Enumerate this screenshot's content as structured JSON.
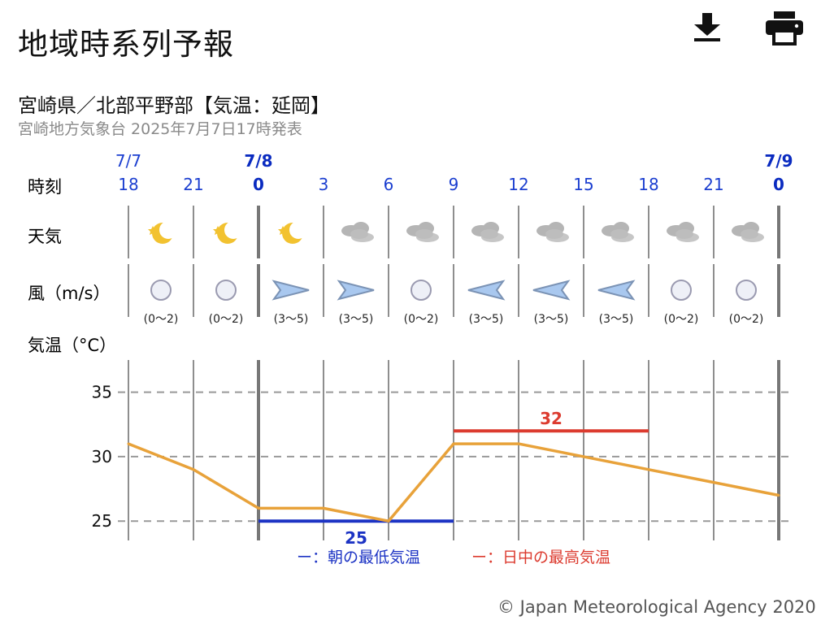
{
  "header": {
    "title": "地域時系列予報",
    "download_icon": "download-icon",
    "print_icon": "print-icon"
  },
  "forecast": {
    "heading": "宮崎県／北部平野部【気温：延岡】",
    "issuer": "宮崎地方気象台 2025年7月7日17時発表"
  },
  "rows": {
    "time_label": "時刻",
    "weather_label": "天気",
    "wind_label": "風（m/s）",
    "temp_label": "気温（°C）"
  },
  "dates": [
    {
      "slot": 0,
      "label": "7/7",
      "bold": false
    },
    {
      "slot": 2,
      "label": "7/8",
      "bold": true
    },
    {
      "slot": 10,
      "label": "7/9",
      "bold": true
    }
  ],
  "times": [
    "18",
    "21",
    "0",
    "3",
    "6",
    "9",
    "12",
    "15",
    "18",
    "21",
    "0"
  ],
  "weather": [
    "moon",
    "moon",
    "moon",
    "cloud",
    "cloud",
    "cloud",
    "cloud",
    "cloud",
    "cloud",
    "cloud"
  ],
  "wind": [
    {
      "dir": "calm",
      "range": "(0〜2)"
    },
    {
      "dir": "calm",
      "range": "(0〜2)"
    },
    {
      "dir": "east",
      "range": "(3〜5)"
    },
    {
      "dir": "east",
      "range": "(3〜5)"
    },
    {
      "dir": "calm",
      "range": "(0〜2)"
    },
    {
      "dir": "west",
      "range": "(3〜5)"
    },
    {
      "dir": "west",
      "range": "(3〜5)"
    },
    {
      "dir": "west",
      "range": "(3〜5)"
    },
    {
      "dir": "calm",
      "range": "(0〜2)"
    },
    {
      "dir": "calm",
      "range": "(0〜2)"
    }
  ],
  "chart_data": {
    "type": "line",
    "x": [
      "7/7 18",
      "21",
      "7/8 0",
      "3",
      "6",
      "9",
      "12",
      "15",
      "18",
      "21",
      "7/9 0"
    ],
    "series": [
      {
        "values": [
          31,
          29,
          26,
          26,
          25,
          31,
          31,
          30,
          29,
          28,
          27
        ],
        "color": "#e8a23a"
      }
    ],
    "ylim": [
      23.5,
      37.5
    ],
    "yticks": [
      25,
      30,
      35
    ],
    "ylabel": "気温（°C）",
    "min_temp": {
      "value": 25,
      "label": "25",
      "from_slot": 2,
      "to_slot": 5,
      "color": "#1c33c4"
    },
    "max_temp": {
      "value": 32,
      "label": "32",
      "from_slot": 5,
      "to_slot": 8,
      "color": "#dc3b2f"
    },
    "grid": true
  },
  "legend": {
    "min": "ー：朝の最低気温",
    "max": "ー：日中の最高気温",
    "min_color": "#1c33c4",
    "max_color": "#dc3b2f"
  },
  "footer": {
    "copyright": "© Japan Meteorological Agency 2020"
  }
}
